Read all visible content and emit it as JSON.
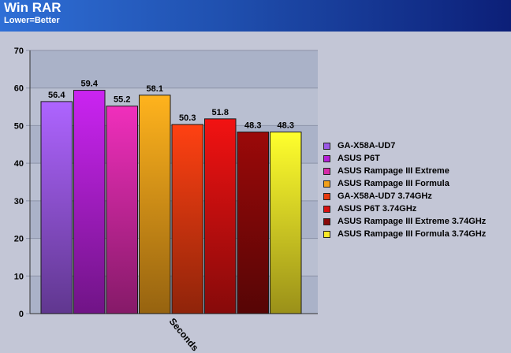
{
  "header": {
    "title": "Win RAR",
    "subtitle": "Lower=Better"
  },
  "chart_data": {
    "type": "bar",
    "title": "Win RAR",
    "subtitle": "Lower=Better",
    "xlabel": "Seconds",
    "ylabel": "",
    "categories": [
      "Seconds"
    ],
    "ylim": [
      0,
      70
    ],
    "yticks": [
      0,
      10,
      20,
      30,
      40,
      50,
      60,
      70
    ],
    "grid": true,
    "legend_position": "right",
    "series": [
      {
        "name": "GA-X58A-UD7",
        "values": [
          56.4
        ],
        "color": "#9b59e6"
      },
      {
        "name": "ASUS P6T",
        "values": [
          59.4
        ],
        "color": "#b520d8"
      },
      {
        "name": "ASUS Rampage III Extreme",
        "values": [
          55.2
        ],
        "color": "#d62aa8"
      },
      {
        "name": "ASUS Rampage III Formula",
        "values": [
          58.1
        ],
        "color": "#f2a01a"
      },
      {
        "name": "GA-X58A-UD7 3.74GHz",
        "values": [
          50.3
        ],
        "color": "#e63a10"
      },
      {
        "name": "ASUS P6T 3.74GHz",
        "values": [
          51.8
        ],
        "color": "#d81010"
      },
      {
        "name": "ASUS Rampage III Extreme 3.74GHz",
        "values": [
          48.3
        ],
        "color": "#8a0808"
      },
      {
        "name": "ASUS Rampage III Formula 3.74GHz",
        "values": [
          48.3
        ],
        "color": "#f8e828"
      }
    ]
  }
}
